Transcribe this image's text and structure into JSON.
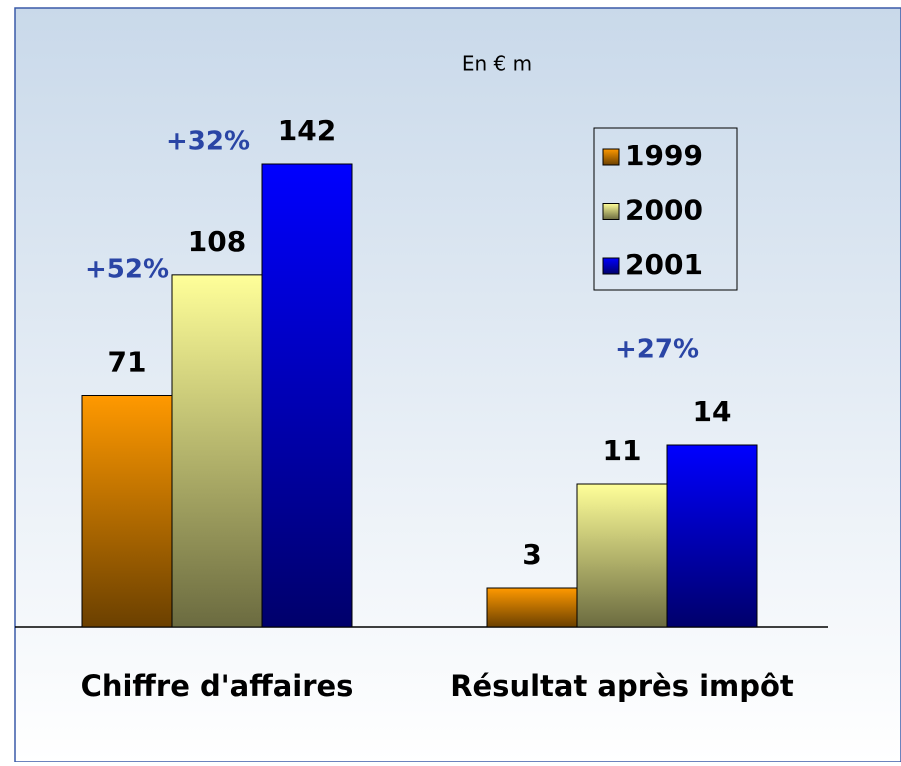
{
  "chart_data": {
    "type": "bar",
    "title": "En € m",
    "categories": [
      "Chiffre d'affaires",
      "Résultat après impôt"
    ],
    "series": [
      {
        "name": "1999",
        "color": "#ff9900",
        "values": [
          71,
          3
        ]
      },
      {
        "name": "2000",
        "color": "#ffff99",
        "values": [
          108,
          11
        ]
      },
      {
        "name": "2001",
        "color": "#0000ff",
        "values": [
          142,
          14
        ]
      }
    ],
    "annotations": [
      "+32%",
      "+52%",
      "+27%"
    ],
    "legend": "top-right"
  }
}
